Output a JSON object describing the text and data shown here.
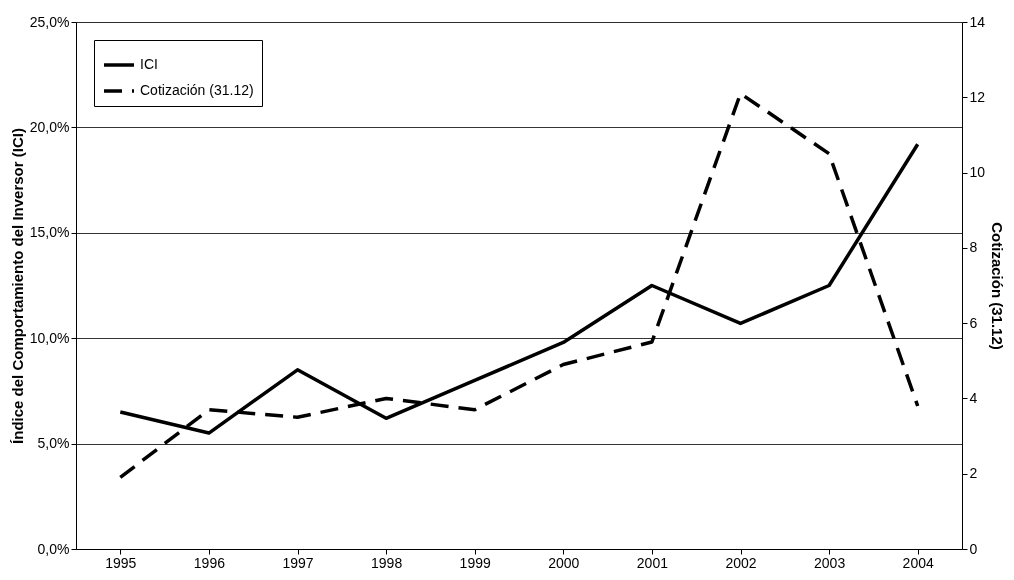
{
  "chart_data": {
    "type": "line",
    "categories": [
      "1995",
      "1996",
      "1997",
      "1998",
      "1999",
      "2000",
      "2001",
      "2002",
      "2003",
      "2004"
    ],
    "series": [
      {
        "name": "ICI",
        "color": "#000000",
        "line_style": "solid",
        "values": [
          6.5,
          5.5,
          8.5,
          6.2,
          8.0,
          9.8,
          12.5,
          10.7,
          12.5,
          19.2
        ]
      },
      {
        "name": "Cotización (31.12)",
        "color": "#000000",
        "line_style": "dashed",
        "axis": "y2",
        "values": [
          1.9,
          3.7,
          3.5,
          4.0,
          3.7,
          4.9,
          5.5,
          12.1,
          10.5,
          3.8
        ]
      }
    ],
    "ylabel": "Índice del Comportamiento del Inversor (ICI)",
    "y2label": "Cotización (31.12)",
    "ylim": [
      0,
      25
    ],
    "yticks": [
      {
        "value": 0,
        "label": "0,0%"
      },
      {
        "value": 5,
        "label": "5,0%"
      },
      {
        "value": 10,
        "label": "10,0%"
      },
      {
        "value": 15,
        "label": "15,0%"
      },
      {
        "value": 20,
        "label": "20,0%"
      },
      {
        "value": 25,
        "label": "25,0%"
      }
    ],
    "y2lim": [
      0,
      14
    ],
    "y2ticks": [
      0,
      2,
      4,
      6,
      8,
      10,
      12,
      14
    ],
    "grid": "y",
    "legend": "top left",
    "marker": "none"
  }
}
